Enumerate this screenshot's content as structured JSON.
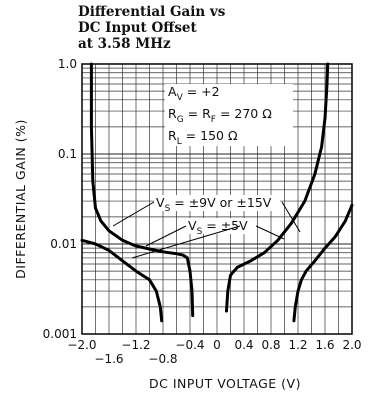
{
  "chart_data": {
    "type": "line",
    "title_lines": [
      "Differential Gain vs",
      "DC Input Offset",
      "at 3.58 MHz"
    ],
    "xlabel": "DC INPUT VOLTAGE (V)",
    "ylabel": "DIFFERENTIAL GAIN (%)",
    "xlim": [
      -2.0,
      2.0
    ],
    "ylim": [
      0.001,
      1.0
    ],
    "yscale": "log",
    "grid": true,
    "x_ticks_upper": [
      "-2.0",
      "-1.2",
      "-0.4",
      "0",
      "0.4",
      "0.8",
      "1.2",
      "1.6",
      "2.0"
    ],
    "x_ticks_upper_values": [
      -2.0,
      -1.2,
      -0.4,
      0,
      0.4,
      0.8,
      1.2,
      1.6,
      2.0
    ],
    "x_ticks_lower": [
      "-1.6",
      "-0.8"
    ],
    "x_ticks_lower_values": [
      -1.6,
      -0.8
    ],
    "y_ticks": [
      "1.0",
      "0.1",
      "0.01",
      "0.001"
    ],
    "y_ticks_values": [
      1.0,
      0.1,
      0.01,
      0.001
    ],
    "conditions": {
      "av": {
        "main": "A",
        "sub": "V",
        "rest": " = +2"
      },
      "rg": {
        "main": "R",
        "sub": "G",
        "mid": " = R",
        "sub2": "F",
        "rest": " = 270 Ω"
      },
      "rl": {
        "main": "R",
        "sub": "L",
        "rest": " = 150 Ω"
      }
    },
    "annotations": {
      "vs_high": {
        "main": "V",
        "sub": "S",
        "rest": " = ±9V or ±15V"
      },
      "vs_low": {
        "main": "V",
        "sub": "S",
        "rest": " = ±5V"
      }
    },
    "series": [
      {
        "label_ref": "vs_high",
        "points": [
          [
            -1.86,
            1.0
          ],
          [
            -1.86,
            0.2
          ],
          [
            -1.84,
            0.05
          ],
          [
            -1.8,
            0.025
          ],
          [
            -1.72,
            0.018
          ],
          [
            -1.6,
            0.014
          ],
          [
            -1.4,
            0.011
          ],
          [
            -1.2,
            0.0095
          ],
          [
            -1.0,
            0.0088
          ],
          [
            -0.8,
            0.0082
          ],
          [
            -0.6,
            0.0078
          ],
          [
            -0.5,
            0.0075
          ],
          [
            -0.44,
            0.007
          ],
          [
            -0.4,
            0.005
          ],
          [
            -0.37,
            0.003
          ],
          [
            -0.36,
            0.0016
          ]
        ],
        "points_b": [
          [
            0.14,
            0.0018
          ],
          [
            0.16,
            0.003
          ],
          [
            0.2,
            0.0045
          ],
          [
            0.3,
            0.0055
          ],
          [
            0.5,
            0.0065
          ],
          [
            0.7,
            0.008
          ],
          [
            0.9,
            0.011
          ],
          [
            1.1,
            0.017
          ],
          [
            1.3,
            0.03
          ],
          [
            1.45,
            0.06
          ],
          [
            1.55,
            0.12
          ],
          [
            1.6,
            0.25
          ],
          [
            1.63,
            0.6
          ],
          [
            1.64,
            1.0
          ]
        ]
      },
      {
        "label_ref": "vs_low",
        "points": [
          [
            -2.0,
            0.011
          ],
          [
            -1.8,
            0.01
          ],
          [
            -1.6,
            0.0085
          ],
          [
            -1.4,
            0.0065
          ],
          [
            -1.2,
            0.005
          ],
          [
            -1.0,
            0.004
          ],
          [
            -0.9,
            0.003
          ],
          [
            -0.84,
            0.002
          ],
          [
            -0.82,
            0.0014
          ]
        ],
        "points_b": [
          [
            1.14,
            0.0014
          ],
          [
            1.16,
            0.002
          ],
          [
            1.2,
            0.003
          ],
          [
            1.25,
            0.004
          ],
          [
            1.32,
            0.005
          ],
          [
            1.45,
            0.0065
          ],
          [
            1.6,
            0.009
          ],
          [
            1.75,
            0.012
          ],
          [
            1.9,
            0.018
          ],
          [
            2.0,
            0.027
          ]
        ]
      }
    ]
  }
}
